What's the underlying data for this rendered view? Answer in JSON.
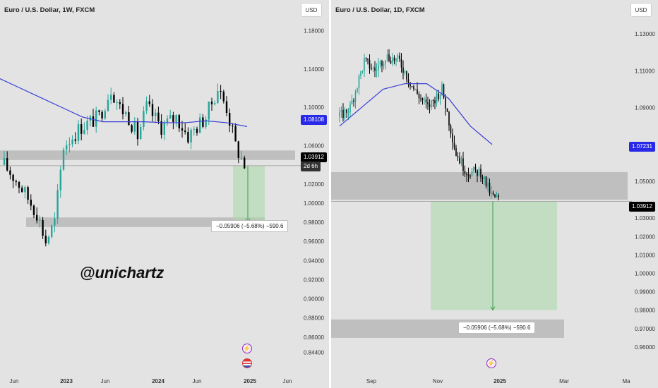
{
  "left": {
    "title": "Euro / U.S. Dollar, 1W, FXCM",
    "currency": "USD",
    "watermark": "@unichartz",
    "measure_label": "−0.05906 (−5.68%) −590.6",
    "ma_tag": "1.08108",
    "price_tag": "1.03912",
    "countdown_tag": "2d 6h",
    "y_ticks": [
      "1.18000",
      "1.14000",
      "1.10000",
      "1.06000",
      "1.02000",
      "1.00000",
      "0.98000",
      "0.96000",
      "0.94000",
      "0.92000",
      "0.90000",
      "0.88000",
      "0.86000",
      "0.84400"
    ],
    "x_ticks": [
      "Jun",
      "2023",
      "Jun",
      "2024",
      "Jun",
      "2025",
      "Jun"
    ]
  },
  "right": {
    "title": "Euro / U.S. Dollar, 1D, FXCM",
    "currency": "USD",
    "measure_label": "−0.05906 (−5.68%) −590.6",
    "ma_tag": "1.07231",
    "price_tag": "1.03912",
    "y_ticks": [
      "1.13000",
      "1.11000",
      "1.09000",
      "1.05000",
      "1.03000",
      "1.02000",
      "1.01000",
      "1.00000",
      "0.99000",
      "0.98000",
      "0.97000",
      "0.96000"
    ],
    "x_ticks": [
      "Sep",
      "Nov",
      "2025",
      "Mar",
      "Ma"
    ]
  },
  "colors": {
    "bull": "#26a69a",
    "bear": "#000000",
    "ma": "#3a3fd4",
    "zone": "#b8b8b8",
    "target": "#a8d8a8",
    "price": "#000000",
    "ma_tag": "#2929e8"
  },
  "chart_data": [
    {
      "type": "candlestick",
      "title": "Euro / U.S. Dollar, 1W, FXCM",
      "ylim": [
        0.84,
        1.196
      ],
      "overlay": "moving-average",
      "close_path": [
        [
          0,
          1.04
        ],
        [
          5,
          1.02
        ],
        [
          11,
          0.99
        ],
        [
          14,
          0.96
        ],
        [
          17,
          0.98
        ],
        [
          20,
          1.06
        ],
        [
          26,
          1.08
        ],
        [
          32,
          1.09
        ],
        [
          36,
          1.12
        ],
        [
          39,
          1.1
        ],
        [
          42,
          1.09
        ],
        [
          45,
          1.07
        ],
        [
          48,
          1.1
        ],
        [
          53,
          1.08
        ],
        [
          58,
          1.09
        ],
        [
          62,
          1.07
        ],
        [
          68,
          1.09
        ],
        [
          72,
          1.12
        ],
        [
          75,
          1.1
        ],
        [
          78,
          1.06
        ],
        [
          81,
          1.04
        ]
      ],
      "ma": [
        1.13,
        1.12,
        1.11,
        1.1,
        1.09,
        1.085,
        1.085,
        1.085,
        1.084,
        1.084,
        1.086,
        1.084,
        1.08
      ],
      "resistance_zone": [
        1.045,
        1.055
      ],
      "support_zone": [
        0.975,
        0.985
      ],
      "target": {
        "from": 1.03912,
        "to": 0.98006,
        "change": -0.05906,
        "pct": -5.68,
        "pips": -590.6
      }
    },
    {
      "type": "candlestick",
      "title": "Euro / U.S. Dollar, 1D, FXCM",
      "ylim": [
        0.955,
        1.14
      ],
      "overlay": "moving-average",
      "close_path": [
        [
          0,
          1.085
        ],
        [
          6,
          1.09
        ],
        [
          14,
          1.115
        ],
        [
          20,
          1.11
        ],
        [
          26,
          1.118
        ],
        [
          34,
          1.115
        ],
        [
          42,
          1.1
        ],
        [
          50,
          1.09
        ],
        [
          58,
          1.1
        ],
        [
          66,
          1.065
        ],
        [
          72,
          1.055
        ],
        [
          80,
          1.055
        ],
        [
          86,
          1.042
        ],
        [
          90,
          1.04
        ]
      ],
      "ma": [
        1.08,
        1.09,
        1.1,
        1.103,
        1.103,
        1.095,
        1.08,
        1.07
      ],
      "resistance_zone": [
        1.04,
        1.055
      ],
      "support_zone": [
        0.965,
        0.975
      ],
      "target": {
        "from": 1.03912,
        "to": 0.98006,
        "change": -0.05906,
        "pct": -5.68,
        "pips": -590.6
      }
    }
  ]
}
